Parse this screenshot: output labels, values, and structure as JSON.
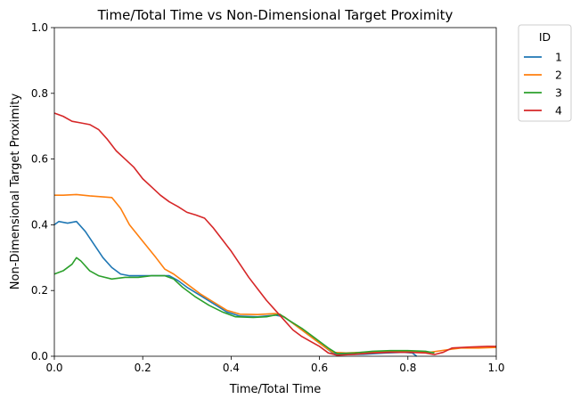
{
  "chart_data": {
    "type": "line",
    "title": "Time/Total Time vs Non-Dimensional Target Proximity",
    "xlabel": "Time/Total Time",
    "ylabel": "Non-Dimensional Target Proximity",
    "xlim": [
      0,
      1
    ],
    "ylim": [
      0,
      1
    ],
    "xticks": [
      0.0,
      0.2,
      0.4,
      0.6,
      0.8,
      1.0
    ],
    "yticks": [
      0.0,
      0.2,
      0.4,
      0.6,
      0.8,
      1.0
    ],
    "xtick_labels": [
      "0.0",
      "0.2",
      "0.4",
      "0.6",
      "0.8",
      "1.0"
    ],
    "ytick_labels": [
      "0.0",
      "0.2",
      "0.4",
      "0.6",
      "0.8",
      "1.0"
    ],
    "grid": false,
    "legend": {
      "title": "ID",
      "position": "outside-top-right"
    },
    "series": [
      {
        "name": "1",
        "color": "#1f77b4",
        "points": [
          [
            0.0,
            0.4
          ],
          [
            0.01,
            0.41
          ],
          [
            0.03,
            0.405
          ],
          [
            0.05,
            0.41
          ],
          [
            0.07,
            0.38
          ],
          [
            0.09,
            0.34
          ],
          [
            0.11,
            0.3
          ],
          [
            0.13,
            0.27
          ],
          [
            0.15,
            0.25
          ],
          [
            0.17,
            0.245
          ],
          [
            0.2,
            0.245
          ],
          [
            0.23,
            0.245
          ],
          [
            0.26,
            0.245
          ],
          [
            0.28,
            0.23
          ],
          [
            0.3,
            0.21
          ],
          [
            0.33,
            0.185
          ],
          [
            0.36,
            0.16
          ],
          [
            0.39,
            0.135
          ],
          [
            0.42,
            0.122
          ],
          [
            0.46,
            0.12
          ],
          [
            0.5,
            0.125
          ],
          [
            0.52,
            0.12
          ],
          [
            0.55,
            0.09
          ],
          [
            0.58,
            0.06
          ],
          [
            0.61,
            0.03
          ],
          [
            0.63,
            0.01
          ],
          [
            0.65,
            0.005
          ],
          [
            0.7,
            0.006
          ],
          [
            0.75,
            0.01
          ],
          [
            0.79,
            0.012
          ],
          [
            0.81,
            0.01
          ],
          [
            0.82,
            0.0
          ]
        ]
      },
      {
        "name": "2",
        "color": "#ff7f0e",
        "points": [
          [
            0.0,
            0.49
          ],
          [
            0.02,
            0.49
          ],
          [
            0.05,
            0.492
          ],
          [
            0.08,
            0.488
          ],
          [
            0.11,
            0.485
          ],
          [
            0.13,
            0.483
          ],
          [
            0.15,
            0.45
          ],
          [
            0.17,
            0.4
          ],
          [
            0.2,
            0.35
          ],
          [
            0.23,
            0.3
          ],
          [
            0.25,
            0.265
          ],
          [
            0.27,
            0.25
          ],
          [
            0.3,
            0.22
          ],
          [
            0.33,
            0.19
          ],
          [
            0.36,
            0.165
          ],
          [
            0.39,
            0.14
          ],
          [
            0.42,
            0.128
          ],
          [
            0.46,
            0.127
          ],
          [
            0.5,
            0.13
          ],
          [
            0.52,
            0.12
          ],
          [
            0.55,
            0.09
          ],
          [
            0.58,
            0.06
          ],
          [
            0.61,
            0.03
          ],
          [
            0.63,
            0.012
          ],
          [
            0.66,
            0.01
          ],
          [
            0.7,
            0.012
          ],
          [
            0.75,
            0.015
          ],
          [
            0.8,
            0.015
          ],
          [
            0.85,
            0.012
          ],
          [
            0.88,
            0.018
          ],
          [
            0.92,
            0.025
          ],
          [
            0.96,
            0.025
          ],
          [
            1.0,
            0.027
          ]
        ]
      },
      {
        "name": "3",
        "color": "#2ca02c",
        "points": [
          [
            0.0,
            0.25
          ],
          [
            0.02,
            0.26
          ],
          [
            0.04,
            0.28
          ],
          [
            0.05,
            0.3
          ],
          [
            0.06,
            0.29
          ],
          [
            0.08,
            0.26
          ],
          [
            0.1,
            0.245
          ],
          [
            0.13,
            0.235
          ],
          [
            0.16,
            0.24
          ],
          [
            0.19,
            0.24
          ],
          [
            0.22,
            0.245
          ],
          [
            0.25,
            0.245
          ],
          [
            0.27,
            0.235
          ],
          [
            0.29,
            0.21
          ],
          [
            0.32,
            0.18
          ],
          [
            0.35,
            0.155
          ],
          [
            0.38,
            0.135
          ],
          [
            0.41,
            0.12
          ],
          [
            0.45,
            0.118
          ],
          [
            0.48,
            0.12
          ],
          [
            0.51,
            0.128
          ],
          [
            0.53,
            0.11
          ],
          [
            0.56,
            0.085
          ],
          [
            0.59,
            0.055
          ],
          [
            0.62,
            0.025
          ],
          [
            0.64,
            0.008
          ],
          [
            0.68,
            0.01
          ],
          [
            0.72,
            0.015
          ],
          [
            0.76,
            0.017
          ],
          [
            0.8,
            0.017
          ],
          [
            0.84,
            0.015
          ],
          [
            0.86,
            0.01
          ]
        ]
      },
      {
        "name": "4",
        "color": "#d62728",
        "points": [
          [
            0.0,
            0.74
          ],
          [
            0.02,
            0.73
          ],
          [
            0.04,
            0.715
          ],
          [
            0.06,
            0.71
          ],
          [
            0.08,
            0.705
          ],
          [
            0.1,
            0.69
          ],
          [
            0.12,
            0.66
          ],
          [
            0.14,
            0.625
          ],
          [
            0.16,
            0.6
          ],
          [
            0.18,
            0.575
          ],
          [
            0.2,
            0.54
          ],
          [
            0.22,
            0.515
          ],
          [
            0.24,
            0.49
          ],
          [
            0.26,
            0.47
          ],
          [
            0.28,
            0.455
          ],
          [
            0.3,
            0.438
          ],
          [
            0.32,
            0.43
          ],
          [
            0.34,
            0.42
          ],
          [
            0.36,
            0.39
          ],
          [
            0.38,
            0.355
          ],
          [
            0.4,
            0.32
          ],
          [
            0.42,
            0.28
          ],
          [
            0.44,
            0.24
          ],
          [
            0.46,
            0.205
          ],
          [
            0.48,
            0.17
          ],
          [
            0.5,
            0.14
          ],
          [
            0.52,
            0.11
          ],
          [
            0.54,
            0.08
          ],
          [
            0.56,
            0.06
          ],
          [
            0.58,
            0.045
          ],
          [
            0.6,
            0.03
          ],
          [
            0.62,
            0.01
          ],
          [
            0.64,
            0.003
          ],
          [
            0.68,
            0.006
          ],
          [
            0.72,
            0.01
          ],
          [
            0.76,
            0.012
          ],
          [
            0.8,
            0.012
          ],
          [
            0.84,
            0.01
          ],
          [
            0.86,
            0.005
          ],
          [
            0.88,
            0.012
          ],
          [
            0.9,
            0.025
          ],
          [
            0.94,
            0.028
          ],
          [
            0.98,
            0.03
          ],
          [
            1.0,
            0.03
          ]
        ]
      }
    ]
  }
}
